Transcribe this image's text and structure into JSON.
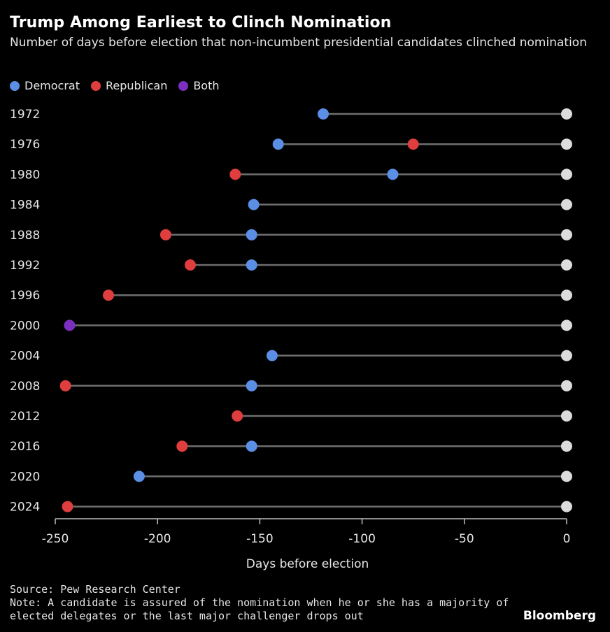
{
  "chart_data": {
    "type": "dot-plot",
    "title": "Trump Among Earliest to Clinch Nomination",
    "subtitle": "Number of days before election that non-incumbent presidential candidates clinched nomination",
    "xlabel": "Days before election",
    "ylabel": "",
    "xlim": [
      -250,
      0
    ],
    "xticks": [
      -250,
      -200,
      -150,
      -100,
      -50,
      0
    ],
    "xtick_labels": [
      "-250",
      "-200",
      "-150",
      "-100",
      "-50",
      "0"
    ],
    "legend": [
      {
        "name": "Democrat",
        "color": "#5b8fe6"
      },
      {
        "name": "Republican",
        "color": "#e03e3e"
      },
      {
        "name": "Both",
        "color": "#7b2fbf"
      }
    ],
    "categories": [
      "1972",
      "1976",
      "1980",
      "1984",
      "1988",
      "1992",
      "1996",
      "2000",
      "2004",
      "2008",
      "2012",
      "2016",
      "2020",
      "2024"
    ],
    "series": [
      {
        "name": "Democrat",
        "values": [
          -119,
          -141,
          -85,
          -153,
          -154,
          -154,
          null,
          null,
          -144,
          -154,
          null,
          -154,
          -209,
          null
        ]
      },
      {
        "name": "Republican",
        "values": [
          null,
          -75,
          -162,
          null,
          -196,
          -184,
          -224,
          null,
          null,
          -245,
          -161,
          -188,
          null,
          -244
        ]
      },
      {
        "name": "Both",
        "values": [
          null,
          null,
          null,
          null,
          null,
          null,
          null,
          -243,
          null,
          null,
          null,
          null,
          null,
          null
        ]
      },
      {
        "name": "Election",
        "values": [
          0,
          0,
          0,
          0,
          0,
          0,
          0,
          0,
          0,
          0,
          0,
          0,
          0,
          0
        ]
      }
    ]
  },
  "footer": {
    "source": "Source: Pew Research Center",
    "note_line1": "Note: A candidate is assured of the nomination when he or she has a majority of",
    "note_line2": "elected delegates or the last major challenger drops out"
  },
  "brand": "Bloomberg",
  "colors": {
    "line": "#6e6e6e",
    "election": "#dcdcdc",
    "axis": "#bdbdbd"
  }
}
